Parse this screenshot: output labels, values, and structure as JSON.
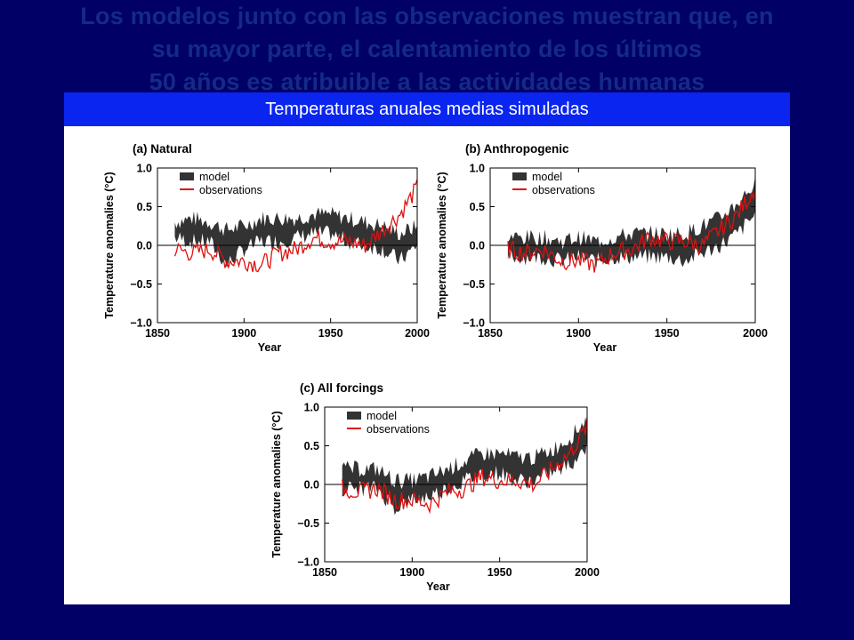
{
  "slide": {
    "title_lines": [
      "Los modelos junto con las observaciones muestran que, en",
      "su mayor parte, el calentamiento de los últimos",
      "50 años es atribuible a las actividades humanas"
    ],
    "banner": "Temperaturas anuales medias simuladas"
  },
  "colors": {
    "background": "#000066",
    "banner": "#0a25f0",
    "model_band": "#333333",
    "observations": "#dd1111"
  },
  "chart_data": [
    {
      "type": "area",
      "title": "(a) Natural",
      "xlabel": "Year",
      "ylabel": "Temperature anomalies (°C)",
      "xlim": [
        1850,
        2000
      ],
      "ylim": [
        -1.0,
        1.0
      ],
      "xticks": [
        1850,
        1900,
        1950,
        2000
      ],
      "yticks": [
        -1.0,
        -0.5,
        0.0,
        0.5,
        1.0
      ],
      "ytick_labels": [
        "−1.0",
        "−0.5",
        "0.0",
        "0.5",
        "1.0"
      ],
      "legend": [
        "model",
        "observations"
      ],
      "legend_position": "top-left",
      "x": [
        1860,
        1870,
        1880,
        1890,
        1900,
        1910,
        1920,
        1930,
        1940,
        1950,
        1960,
        1970,
        1980,
        1990,
        2000
      ],
      "series": [
        {
          "name": "model",
          "kind": "band",
          "low": [
            0.1,
            0.05,
            0.05,
            -0.25,
            -0.05,
            0.05,
            0.05,
            0.1,
            0.15,
            0.15,
            0.05,
            0.0,
            -0.05,
            -0.2,
            0.0
          ],
          "high": [
            0.3,
            0.35,
            0.3,
            0.2,
            0.25,
            0.35,
            0.35,
            0.35,
            0.4,
            0.4,
            0.35,
            0.3,
            0.25,
            0.15,
            0.25
          ]
        },
        {
          "name": "observations",
          "kind": "line",
          "values": [
            -0.05,
            -0.1,
            -0.05,
            -0.2,
            -0.2,
            -0.25,
            -0.1,
            -0.05,
            0.1,
            0.05,
            0.05,
            0.0,
            0.2,
            0.4,
            0.75
          ]
        }
      ]
    },
    {
      "type": "area",
      "title": "(b) Anthropogenic",
      "xlabel": "Year",
      "ylabel": "Temperature anomalies (°C)",
      "xlim": [
        1850,
        2000
      ],
      "ylim": [
        -1.0,
        1.0
      ],
      "xticks": [
        1850,
        1900,
        1950,
        2000
      ],
      "yticks": [
        -1.0,
        -0.5,
        0.0,
        0.5,
        1.0
      ],
      "ytick_labels": [
        "−1.0",
        "−0.5",
        "0.0",
        "0.5",
        "1.0"
      ],
      "legend": [
        "model",
        "observations"
      ],
      "legend_position": "top-left",
      "x": [
        1860,
        1870,
        1880,
        1890,
        1900,
        1910,
        1920,
        1930,
        1940,
        1950,
        1960,
        1970,
        1980,
        1990,
        2000
      ],
      "series": [
        {
          "name": "model",
          "kind": "band",
          "low": [
            -0.15,
            -0.15,
            -0.15,
            -0.2,
            -0.15,
            -0.2,
            -0.15,
            -0.15,
            -0.15,
            -0.15,
            -0.2,
            -0.1,
            0.0,
            0.15,
            0.4
          ],
          "high": [
            0.1,
            0.1,
            0.1,
            0.05,
            0.1,
            0.05,
            0.1,
            0.15,
            0.15,
            0.15,
            0.15,
            0.25,
            0.35,
            0.55,
            0.8
          ]
        },
        {
          "name": "observations",
          "kind": "line",
          "values": [
            -0.05,
            -0.1,
            -0.05,
            -0.2,
            -0.2,
            -0.25,
            -0.1,
            -0.05,
            0.1,
            0.05,
            0.05,
            0.0,
            0.2,
            0.4,
            0.75
          ]
        }
      ]
    },
    {
      "type": "area",
      "title": "(c) All forcings",
      "xlabel": "Year",
      "ylabel": "Temperature anomalies (°C)",
      "xlim": [
        1850,
        2000
      ],
      "ylim": [
        -1.0,
        1.0
      ],
      "xticks": [
        1850,
        1900,
        1950,
        2000
      ],
      "yticks": [
        -1.0,
        -0.5,
        0.0,
        0.5,
        1.0
      ],
      "ytick_labels": [
        "−1.0",
        "−0.5",
        "0.0",
        "0.5",
        "1.0"
      ],
      "legend": [
        "model",
        "observations"
      ],
      "legend_position": "top-left",
      "x": [
        1860,
        1870,
        1880,
        1890,
        1900,
        1910,
        1920,
        1930,
        1940,
        1950,
        1960,
        1970,
        1980,
        1990,
        2000
      ],
      "series": [
        {
          "name": "model",
          "kind": "band",
          "low": [
            -0.05,
            -0.05,
            -0.05,
            -0.3,
            -0.2,
            -0.15,
            -0.05,
            0.05,
            0.15,
            0.15,
            0.05,
            0.05,
            0.15,
            0.25,
            0.5
          ],
          "high": [
            0.2,
            0.2,
            0.2,
            0.05,
            0.05,
            0.1,
            0.2,
            0.3,
            0.4,
            0.4,
            0.35,
            0.35,
            0.45,
            0.6,
            0.85
          ]
        },
        {
          "name": "observations",
          "kind": "line",
          "values": [
            -0.05,
            -0.1,
            -0.05,
            -0.2,
            -0.2,
            -0.25,
            -0.1,
            -0.05,
            0.1,
            0.05,
            0.05,
            0.0,
            0.2,
            0.4,
            0.75
          ]
        }
      ]
    }
  ]
}
